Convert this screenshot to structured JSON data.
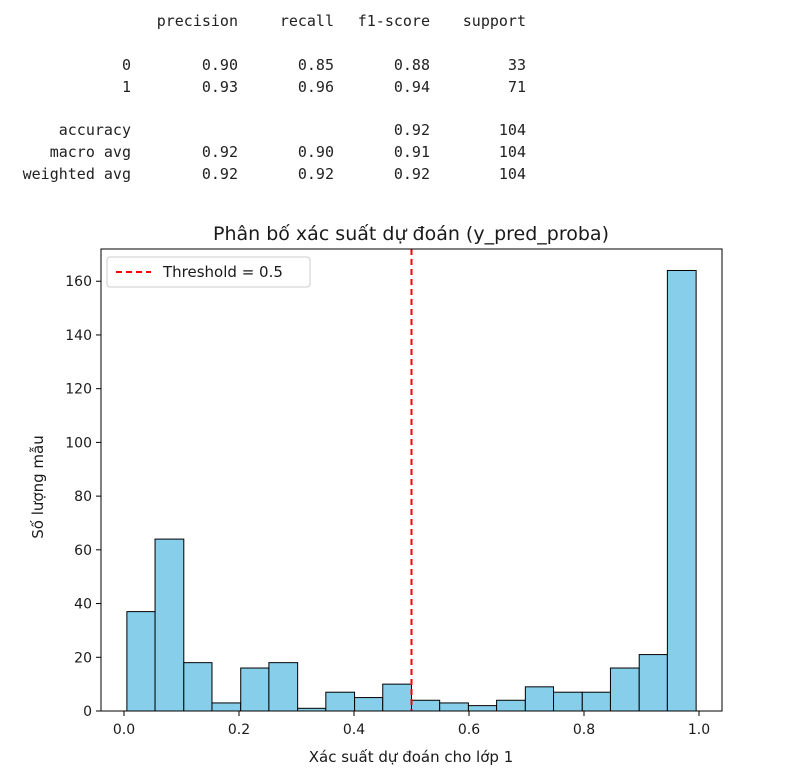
{
  "report": {
    "headers": [
      "precision",
      "recall",
      "f1-score",
      "support"
    ],
    "rows": [
      {
        "label": "0",
        "precision": "0.90",
        "recall": "0.85",
        "f1": "0.88",
        "support": "33"
      },
      {
        "label": "1",
        "precision": "0.93",
        "recall": "0.96",
        "f1": "0.94",
        "support": "71"
      },
      {
        "label": "accuracy",
        "precision": "",
        "recall": "",
        "f1": "0.92",
        "support": "104"
      },
      {
        "label": "macro avg",
        "precision": "0.92",
        "recall": "0.90",
        "f1": "0.91",
        "support": "104"
      },
      {
        "label": "weighted avg",
        "precision": "0.92",
        "recall": "0.92",
        "f1": "0.92",
        "support": "104"
      }
    ]
  },
  "chart_data": {
    "type": "bar",
    "title": "Phân bố xác suất dự đoán (y_pred_proba)",
    "xlabel": "Xác suất dự đoán cho lớp 1",
    "ylabel": "Số lượng mẫu",
    "bin_edges": [
      0.005,
      0.054,
      0.104,
      0.153,
      0.203,
      0.252,
      0.302,
      0.351,
      0.401,
      0.45,
      0.5,
      0.549,
      0.599,
      0.648,
      0.698,
      0.747,
      0.797,
      0.846,
      0.896,
      0.945,
      0.995
    ],
    "values": [
      37,
      64,
      18,
      3,
      16,
      18,
      1,
      7,
      5,
      10,
      4,
      3,
      2,
      4,
      9,
      7,
      7,
      16,
      21,
      164
    ],
    "xlim": [
      -0.04,
      1.04
    ],
    "ylim": [
      0,
      172
    ],
    "xticks": [
      "0.0",
      "0.2",
      "0.4",
      "0.6",
      "0.8",
      "1.0"
    ],
    "xtick_values": [
      0,
      0.2,
      0.4,
      0.6,
      0.8,
      1.0
    ],
    "yticks": [
      "0",
      "20",
      "40",
      "60",
      "80",
      "100",
      "120",
      "140",
      "160"
    ],
    "ytick_values": [
      0,
      20,
      40,
      60,
      80,
      100,
      120,
      140,
      160
    ],
    "threshold": {
      "value": 0.5,
      "label": "Threshold = 0.5",
      "color": "#ff0000"
    },
    "bar_color": "#87ceeb",
    "edge_color": "#000000",
    "legend_position": "top-left",
    "grid": false
  }
}
